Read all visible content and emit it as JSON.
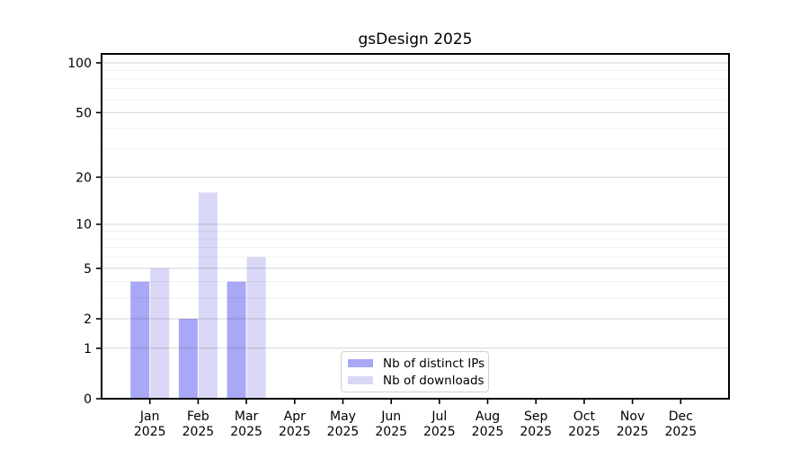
{
  "chart_data": {
    "type": "bar",
    "title": "gsDesign 2025",
    "categories": [
      "Jan",
      "Feb",
      "Mar",
      "Apr",
      "May",
      "Jun",
      "Jul",
      "Aug",
      "Sep",
      "Oct",
      "Nov",
      "Dec"
    ],
    "year": "2025",
    "series": [
      {
        "name": "Nb of distinct IPs",
        "color": "#a8a8f6",
        "values": [
          4,
          2,
          4,
          0,
          0,
          0,
          0,
          0,
          0,
          0,
          0,
          0
        ]
      },
      {
        "name": "Nb of downloads",
        "color": "#d8d8f6",
        "values": [
          5,
          16,
          6,
          0,
          0,
          0,
          0,
          0,
          0,
          0,
          0,
          0
        ]
      }
    ],
    "y_ticks": [
      0,
      1,
      2,
      5,
      10,
      20,
      50,
      100
    ],
    "y_minor_ticks": [
      3,
      4,
      6,
      7,
      8,
      9,
      30,
      40,
      60,
      70,
      80,
      90
    ],
    "scale": "log10(1+x)",
    "ylim": [
      0,
      113
    ],
    "grid": true,
    "grid_major_color": "rgba(0,0,0,0.16)",
    "grid_minor_color": "rgba(0,0,0,0.06)",
    "axis_color": "#000000",
    "legend_position": "lower center"
  }
}
